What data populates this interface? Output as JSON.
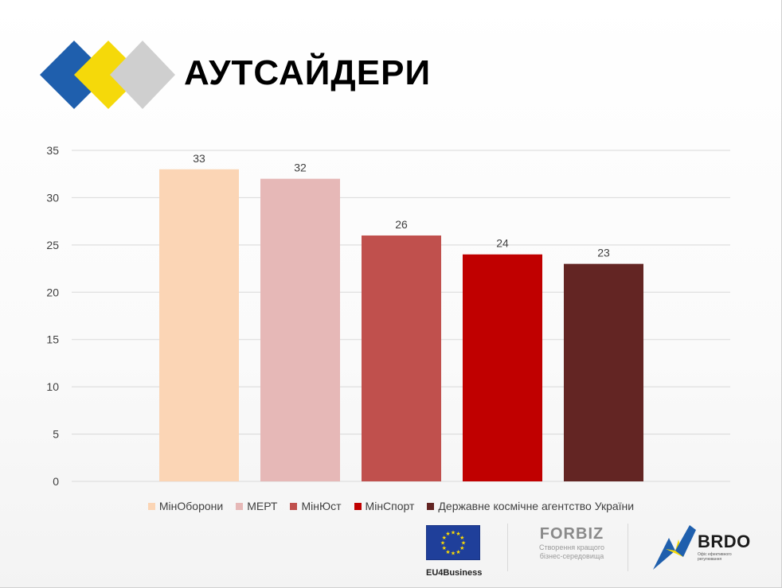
{
  "title": "АУТСАЙДЕРИ",
  "colors": {
    "diamond_blue": "#1f5fad",
    "diamond_yellow": "#f5d90a",
    "diamond_grey": "#c8c8c8",
    "gridline": "#d9d9d9",
    "axis_text": "#404040"
  },
  "chart_data": {
    "type": "bar",
    "categories": [
      "МінОборони",
      "МЕРТ",
      "МінЮст",
      "МінСпорт",
      "Державне космічне агентство України"
    ],
    "values": [
      33,
      32,
      26,
      24,
      23
    ],
    "colors": [
      "#fbd5b5",
      "#e6b8b7",
      "#c0504d",
      "#c00000",
      "#632523"
    ],
    "ylim": [
      0,
      35
    ],
    "yticks": [
      0,
      5,
      10,
      15,
      20,
      25,
      30,
      35
    ],
    "data_labels": [
      "33",
      "32",
      "26",
      "24",
      "23"
    ],
    "title": "",
    "xlabel": "",
    "ylabel": "",
    "grid": true,
    "legend_position": "bottom"
  },
  "footer": {
    "eu_caption": "EU4Business",
    "forbiz_name": "FORBIZ",
    "forbiz_tagline_1": "Створення кращого",
    "forbiz_tagline_2": "бізнес-середовища",
    "brdo_name": "BRDO",
    "brdo_tagline": "Офіс ефективного регулювання"
  }
}
